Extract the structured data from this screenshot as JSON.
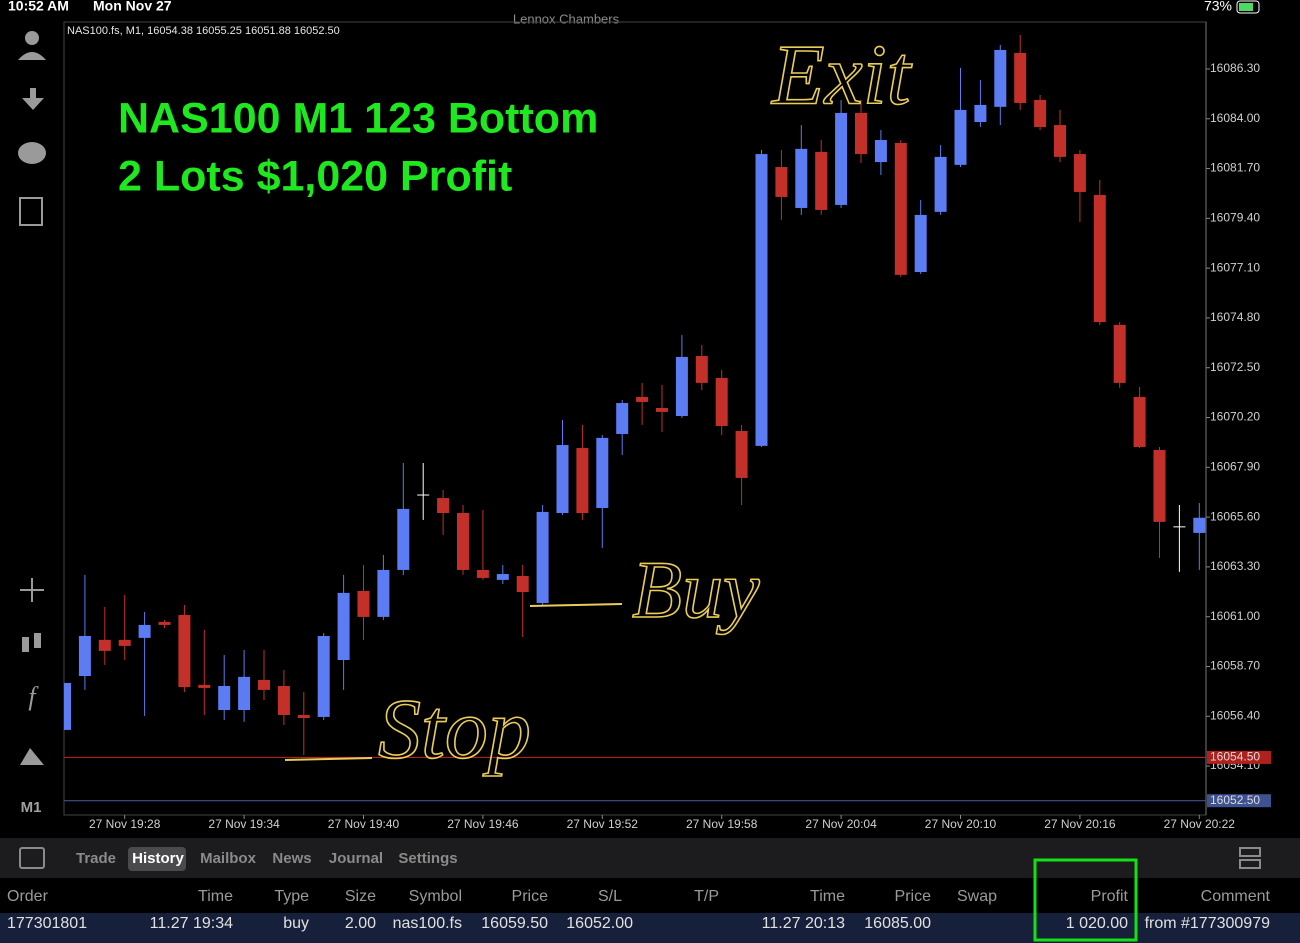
{
  "status_bar": {
    "time": "10:52 AM",
    "date": "Mon Nov 27",
    "account": "Lennox Chambers",
    "battery": "73%"
  },
  "toolbar": {
    "timeframe": "M1"
  },
  "chart_data": {
    "type": "candlestick",
    "header": "NAS100.fs, M1, 16054.38 16055.25 16051.88 16052.50",
    "annotations": [
      "NAS100 M1 123 Bottom",
      "2 Lots $1,020 Profit"
    ],
    "handwritten": [
      "Exit",
      "Buy",
      "Stop"
    ],
    "categories": [
      null,
      null,
      null,
      "27 Nov 19:28",
      null,
      null,
      null,
      null,
      null,
      "27 Nov 19:34",
      null,
      null,
      null,
      null,
      null,
      "27 Nov 19:40",
      null,
      null,
      null,
      null,
      null,
      "27 Nov 19:46",
      null,
      null,
      null,
      null,
      null,
      "27 Nov 19:52",
      null,
      null,
      null,
      null,
      null,
      "27 Nov 19:58",
      null,
      null,
      null,
      null,
      null,
      "27 Nov 20:04",
      null,
      null,
      null,
      null,
      null,
      "27 Nov 20:10",
      null,
      null,
      null,
      null,
      null,
      "27 Nov 20:16",
      null,
      null,
      null,
      null,
      null,
      "27 Nov 20:22"
    ],
    "open": [
      16055.77,
      16058.26,
      16059.93,
      16059.93,
      16060.02,
      16060.76,
      16061.08,
      16057.85,
      16056.69,
      16056.69,
      16058.08,
      16057.8,
      16056.46,
      16056.37,
      16059.0,
      16062.19,
      16060.99,
      16063.16,
      16066.62,
      16066.48,
      16065.79,
      16063.16,
      16062.7,
      16062.88,
      16061.63,
      16065.79,
      16068.79,
      16066.02,
      16069.44,
      16071.15,
      16070.64,
      16070.27,
      16073.04,
      16072.03,
      16069.58,
      16068.89,
      16081.77,
      16079.88,
      16082.47,
      16080.02,
      16084.27,
      16082.0,
      16082.88,
      16076.92,
      16079.7,
      16081.87,
      16083.85,
      16084.55,
      16087.04,
      16084.87,
      16083.71,
      16082.37,
      16080.48,
      16074.48,
      16071.15,
      16068.7,
      16065.15,
      16064.87
    ],
    "high": [
      16057.94,
      16062.93,
      16061.45,
      16062.0,
      16061.22,
      16060.85,
      16061.54,
      16060.39,
      16059.23,
      16059.46,
      16059.46,
      16058.54,
      16057.52,
      16060.25,
      16062.93,
      16063.39,
      16063.85,
      16068.1,
      16068.1,
      16066.85,
      16066.16,
      16065.93,
      16063.39,
      16063.39,
      16066.16,
      16070.09,
      16069.86,
      16069.39,
      16071.01,
      16071.8,
      16071.7,
      16074.01,
      16073.55,
      16072.4,
      16069.86,
      16082.56,
      16082.56,
      16083.71,
      16083.02,
      16084.87,
      16084.87,
      16083.48,
      16083.02,
      16080.25,
      16082.79,
      16086.35,
      16085.79,
      16087.41,
      16087.87,
      16085.1,
      16084.41,
      16082.56,
      16081.17,
      16074.61,
      16071.61,
      16068.84,
      16066.16,
      16066.25
    ],
    "low": [
      16055.77,
      16057.62,
      16058.77,
      16059.0,
      16056.42,
      16060.48,
      16057.52,
      16056.46,
      16056.23,
      16056.14,
      16057.15,
      16056.0,
      16054.61,
      16056.23,
      16057.62,
      16059.93,
      16060.85,
      16062.93,
      16065.47,
      16064.78,
      16062.93,
      16062.7,
      16062.51,
      16060.06,
      16061.54,
      16065.7,
      16065.47,
      16064.18,
      16068.47,
      16069.86,
      16069.53,
      16070.18,
      16071.47,
      16069.39,
      16066.16,
      16068.84,
      16079.33,
      16079.56,
      16079.56,
      16079.88,
      16081.96,
      16081.4,
      16076.69,
      16076.83,
      16079.56,
      16081.77,
      16083.62,
      16083.71,
      16084.41,
      16083.48,
      16082.0,
      16079.23,
      16074.48,
      16071.57,
      16068.79,
      16063.71,
      16063.07,
      16063.16
    ],
    "close": [
      16057.94,
      16060.11,
      16059.42,
      16059.65,
      16060.62,
      16060.62,
      16057.75,
      16057.71,
      16057.8,
      16058.22,
      16057.62,
      16056.46,
      16056.32,
      16060.11,
      16062.1,
      16060.99,
      16063.16,
      16065.98,
      16066.62,
      16065.79,
      16063.16,
      16062.79,
      16062.97,
      16062.14,
      16065.84,
      16068.93,
      16065.79,
      16069.26,
      16070.87,
      16070.92,
      16070.46,
      16073.0,
      16071.8,
      16069.81,
      16067.41,
      16082.37,
      16080.39,
      16082.61,
      16079.79,
      16084.27,
      16082.37,
      16083.02,
      16076.79,
      16079.56,
      16082.24,
      16084.41,
      16084.64,
      16087.18,
      16084.73,
      16083.62,
      16082.24,
      16080.62,
      16074.61,
      16071.8,
      16068.84,
      16065.38,
      16065.15,
      16065.57
    ],
    "up_color": "#5b7cf2",
    "down_color": "#c3302a",
    "doji_color": "#ffffff",
    "ylim": [
      16051.84,
      16088.47
    ],
    "yticks": [
      {
        "value": 16086.3,
        "label": "16086.30"
      },
      {
        "value": 16084,
        "label": "16084.00"
      },
      {
        "value": 16081.7,
        "label": "16081.70"
      },
      {
        "value": 16079.4,
        "label": "16079.40"
      },
      {
        "value": 16077.1,
        "label": "16077.10"
      },
      {
        "value": 16074.8,
        "label": "16074.80"
      },
      {
        "value": 16072.5,
        "label": "16072.50"
      },
      {
        "value": 16070.2,
        "label": "16070.20"
      },
      {
        "value": 16067.9,
        "label": "16067.90"
      },
      {
        "value": 16065.6,
        "label": "16065.60"
      },
      {
        "value": 16063.3,
        "label": "16063.30"
      },
      {
        "value": 16061,
        "label": "16061.00"
      },
      {
        "value": 16058.7,
        "label": "16058.70"
      },
      {
        "value": 16056.4,
        "label": "16056.40"
      },
      {
        "value": 16054.1,
        "label": "16054.10"
      }
    ],
    "price_lines": [
      {
        "value": 16054.5,
        "label": "16054.50",
        "color": "#b0201c"
      },
      {
        "value": 16052.5,
        "label": "16052.50",
        "color": "#3e5190"
      }
    ]
  },
  "tabs": [
    "Trade",
    "History",
    "Mailbox",
    "News",
    "Journal",
    "Settings"
  ],
  "table": {
    "columns": [
      "Order",
      "Time",
      "Type",
      "Size",
      "Symbol",
      "Price",
      "S/L",
      "T/P",
      "Time",
      "Price",
      "Swap",
      "Profit",
      "Comment"
    ],
    "rows": [
      {
        "order": "177301801",
        "open_time": "11.27 19:34",
        "type": "buy",
        "size": "2.00",
        "symbol": "nas100.fs",
        "open_price": "16059.50",
        "sl": "16052.00",
        "close_time": "11.27 20:13",
        "close_price": "16085.00",
        "profit": "1 020.00",
        "comment": "from #177300979"
      }
    ]
  }
}
